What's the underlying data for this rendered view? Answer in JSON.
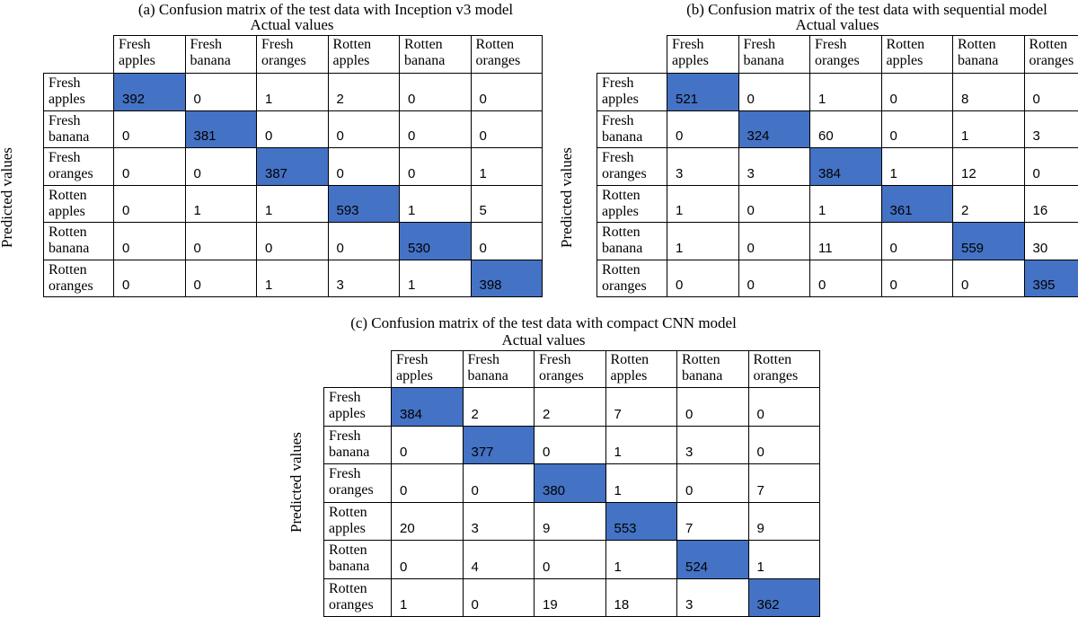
{
  "panels": [
    {
      "id": "a",
      "title": "(a)    Confusion matrix of the test data with Inception v3 model",
      "actual_label": "Actual values",
      "predicted_label": "Predicted values",
      "col_labels": [
        [
          "Fresh",
          "apples"
        ],
        [
          "Fresh",
          "banana"
        ],
        [
          "Fresh",
          "oranges"
        ],
        [
          "Rotten",
          "apples"
        ],
        [
          "Rotten",
          "banana"
        ],
        [
          "Rotten",
          "oranges"
        ]
      ],
      "row_labels": [
        [
          "Fresh",
          "apples"
        ],
        [
          "Fresh",
          "banana"
        ],
        [
          "Fresh",
          "oranges"
        ],
        [
          "Rotten",
          "apples"
        ],
        [
          "Rotten",
          "banana"
        ],
        [
          "Rotten",
          "oranges"
        ]
      ],
      "matrix": [
        [
          392,
          0,
          1,
          2,
          0,
          0
        ],
        [
          0,
          381,
          0,
          0,
          0,
          0
        ],
        [
          0,
          0,
          387,
          0,
          0,
          1
        ],
        [
          0,
          1,
          1,
          593,
          1,
          5
        ],
        [
          0,
          0,
          0,
          0,
          530,
          0
        ],
        [
          0,
          0,
          1,
          3,
          1,
          398
        ]
      ]
    },
    {
      "id": "b",
      "title": "(b)    Confusion matrix of the test data with sequential model",
      "actual_label": "Actual values",
      "predicted_label": "Predicted values",
      "col_labels": [
        [
          "Fresh",
          "apples"
        ],
        [
          "Fresh",
          "banana"
        ],
        [
          "Fresh",
          "oranges"
        ],
        [
          "Rotten",
          "apples"
        ],
        [
          "Rotten",
          "banana"
        ],
        [
          "Rotten",
          "oranges"
        ]
      ],
      "row_labels": [
        [
          "Fresh",
          "apples"
        ],
        [
          "Fresh",
          "banana"
        ],
        [
          "Fresh",
          "oranges"
        ],
        [
          "Rotten",
          "apples"
        ],
        [
          "Rotten",
          "banana"
        ],
        [
          "Rotten",
          "oranges"
        ]
      ],
      "matrix": [
        [
          521,
          0,
          1,
          0,
          8,
          0
        ],
        [
          0,
          324,
          60,
          0,
          1,
          3
        ],
        [
          3,
          3,
          384,
          1,
          12,
          0
        ],
        [
          1,
          0,
          1,
          361,
          2,
          16
        ],
        [
          1,
          0,
          11,
          0,
          559,
          30
        ],
        [
          0,
          0,
          0,
          0,
          0,
          395
        ]
      ]
    },
    {
      "id": "c",
      "title": "(c) Confusion matrix of the test data with compact CNN model",
      "actual_label": "Actual values",
      "predicted_label": "Predicted values",
      "col_labels": [
        [
          "Fresh",
          "apples"
        ],
        [
          "Fresh",
          "banana"
        ],
        [
          "Fresh",
          "oranges"
        ],
        [
          "Rotten",
          "apples"
        ],
        [
          "Rotten",
          "banana"
        ],
        [
          "Rotten",
          "oranges"
        ]
      ],
      "row_labels": [
        [
          "Fresh",
          "apples"
        ],
        [
          "Fresh",
          "banana"
        ],
        [
          "Fresh",
          "oranges"
        ],
        [
          "Rotten",
          "apples"
        ],
        [
          "Rotten",
          "banana"
        ],
        [
          "Rotten",
          "oranges"
        ]
      ],
      "matrix": [
        [
          384,
          2,
          2,
          7,
          0,
          0
        ],
        [
          0,
          377,
          0,
          1,
          3,
          0
        ],
        [
          0,
          0,
          380,
          1,
          0,
          7
        ],
        [
          20,
          3,
          9,
          553,
          7,
          9
        ],
        [
          0,
          4,
          0,
          1,
          524,
          1
        ],
        [
          1,
          0,
          19,
          18,
          3,
          362
        ]
      ]
    }
  ],
  "chart_data": [
    {
      "type": "heatmap",
      "title": "(a)    Confusion matrix of the test data with Inception v3 model",
      "xlabel": "Actual values",
      "ylabel": "Predicted values",
      "x": [
        "Fresh apples",
        "Fresh banana",
        "Fresh oranges",
        "Rotten apples",
        "Rotten banana",
        "Rotten oranges"
      ],
      "y": [
        "Fresh apples",
        "Fresh banana",
        "Fresh oranges",
        "Rotten apples",
        "Rotten banana",
        "Rotten oranges"
      ],
      "values": [
        [
          392,
          0,
          1,
          2,
          0,
          0
        ],
        [
          0,
          381,
          0,
          0,
          0,
          0
        ],
        [
          0,
          0,
          387,
          0,
          0,
          1
        ],
        [
          0,
          1,
          1,
          593,
          1,
          5
        ],
        [
          0,
          0,
          0,
          0,
          530,
          0
        ],
        [
          0,
          0,
          1,
          3,
          1,
          398
        ]
      ],
      "highlight": "diagonal",
      "highlight_color": "#4472c4"
    },
    {
      "type": "heatmap",
      "title": "(b)    Confusion matrix of the test data with sequential model",
      "xlabel": "Actual values",
      "ylabel": "Predicted values",
      "x": [
        "Fresh apples",
        "Fresh banana",
        "Fresh oranges",
        "Rotten apples",
        "Rotten banana",
        "Rotten oranges"
      ],
      "y": [
        "Fresh apples",
        "Fresh banana",
        "Fresh oranges",
        "Rotten apples",
        "Rotten banana",
        "Rotten oranges"
      ],
      "values": [
        [
          521,
          0,
          1,
          0,
          8,
          0
        ],
        [
          0,
          324,
          60,
          0,
          1,
          3
        ],
        [
          3,
          3,
          384,
          1,
          12,
          0
        ],
        [
          1,
          0,
          1,
          361,
          2,
          16
        ],
        [
          1,
          0,
          11,
          0,
          559,
          30
        ],
        [
          0,
          0,
          0,
          0,
          0,
          395
        ]
      ],
      "highlight": "diagonal",
      "highlight_color": "#4472c4"
    },
    {
      "type": "heatmap",
      "title": "(c) Confusion matrix of the test data with compact CNN model",
      "xlabel": "Actual values",
      "ylabel": "Predicted values",
      "x": [
        "Fresh apples",
        "Fresh banana",
        "Fresh oranges",
        "Rotten apples",
        "Rotten banana",
        "Rotten oranges"
      ],
      "y": [
        "Fresh apples",
        "Fresh banana",
        "Fresh oranges",
        "Rotten apples",
        "Rotten banana",
        "Rotten oranges"
      ],
      "values": [
        [
          384,
          2,
          2,
          7,
          0,
          0
        ],
        [
          0,
          377,
          0,
          1,
          3,
          0
        ],
        [
          0,
          0,
          380,
          1,
          0,
          7
        ],
        [
          20,
          3,
          9,
          553,
          7,
          9
        ],
        [
          0,
          4,
          0,
          1,
          524,
          1
        ],
        [
          1,
          0,
          19,
          18,
          3,
          362
        ]
      ],
      "highlight": "diagonal",
      "highlight_color": "#4472c4"
    }
  ]
}
